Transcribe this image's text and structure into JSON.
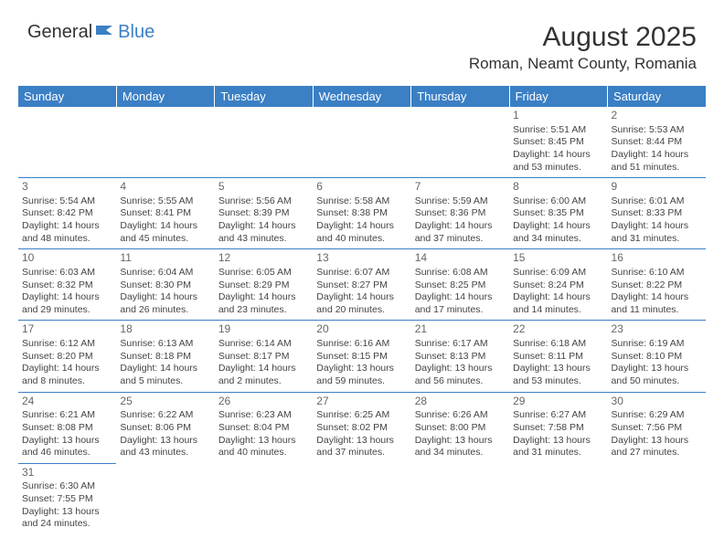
{
  "logo": {
    "text1": "General",
    "text2": "Blue"
  },
  "title": "August 2025",
  "location": "Roman, Neamt County, Romania",
  "colors": {
    "header_bg": "#3b7fc4",
    "header_text": "#ffffff",
    "border": "#3b7fc4",
    "text": "#444444",
    "daynum": "#666666"
  },
  "dayHeaders": [
    "Sunday",
    "Monday",
    "Tuesday",
    "Wednesday",
    "Thursday",
    "Friday",
    "Saturday"
  ],
  "weeks": [
    [
      null,
      null,
      null,
      null,
      null,
      {
        "n": "1",
        "sr": "Sunrise: 5:51 AM",
        "ss": "Sunset: 8:45 PM",
        "dl": "Daylight: 14 hours and 53 minutes."
      },
      {
        "n": "2",
        "sr": "Sunrise: 5:53 AM",
        "ss": "Sunset: 8:44 PM",
        "dl": "Daylight: 14 hours and 51 minutes."
      }
    ],
    [
      {
        "n": "3",
        "sr": "Sunrise: 5:54 AM",
        "ss": "Sunset: 8:42 PM",
        "dl": "Daylight: 14 hours and 48 minutes."
      },
      {
        "n": "4",
        "sr": "Sunrise: 5:55 AM",
        "ss": "Sunset: 8:41 PM",
        "dl": "Daylight: 14 hours and 45 minutes."
      },
      {
        "n": "5",
        "sr": "Sunrise: 5:56 AM",
        "ss": "Sunset: 8:39 PM",
        "dl": "Daylight: 14 hours and 43 minutes."
      },
      {
        "n": "6",
        "sr": "Sunrise: 5:58 AM",
        "ss": "Sunset: 8:38 PM",
        "dl": "Daylight: 14 hours and 40 minutes."
      },
      {
        "n": "7",
        "sr": "Sunrise: 5:59 AM",
        "ss": "Sunset: 8:36 PM",
        "dl": "Daylight: 14 hours and 37 minutes."
      },
      {
        "n": "8",
        "sr": "Sunrise: 6:00 AM",
        "ss": "Sunset: 8:35 PM",
        "dl": "Daylight: 14 hours and 34 minutes."
      },
      {
        "n": "9",
        "sr": "Sunrise: 6:01 AM",
        "ss": "Sunset: 8:33 PM",
        "dl": "Daylight: 14 hours and 31 minutes."
      }
    ],
    [
      {
        "n": "10",
        "sr": "Sunrise: 6:03 AM",
        "ss": "Sunset: 8:32 PM",
        "dl": "Daylight: 14 hours and 29 minutes."
      },
      {
        "n": "11",
        "sr": "Sunrise: 6:04 AM",
        "ss": "Sunset: 8:30 PM",
        "dl": "Daylight: 14 hours and 26 minutes."
      },
      {
        "n": "12",
        "sr": "Sunrise: 6:05 AM",
        "ss": "Sunset: 8:29 PM",
        "dl": "Daylight: 14 hours and 23 minutes."
      },
      {
        "n": "13",
        "sr": "Sunrise: 6:07 AM",
        "ss": "Sunset: 8:27 PM",
        "dl": "Daylight: 14 hours and 20 minutes."
      },
      {
        "n": "14",
        "sr": "Sunrise: 6:08 AM",
        "ss": "Sunset: 8:25 PM",
        "dl": "Daylight: 14 hours and 17 minutes."
      },
      {
        "n": "15",
        "sr": "Sunrise: 6:09 AM",
        "ss": "Sunset: 8:24 PM",
        "dl": "Daylight: 14 hours and 14 minutes."
      },
      {
        "n": "16",
        "sr": "Sunrise: 6:10 AM",
        "ss": "Sunset: 8:22 PM",
        "dl": "Daylight: 14 hours and 11 minutes."
      }
    ],
    [
      {
        "n": "17",
        "sr": "Sunrise: 6:12 AM",
        "ss": "Sunset: 8:20 PM",
        "dl": "Daylight: 14 hours and 8 minutes."
      },
      {
        "n": "18",
        "sr": "Sunrise: 6:13 AM",
        "ss": "Sunset: 8:18 PM",
        "dl": "Daylight: 14 hours and 5 minutes."
      },
      {
        "n": "19",
        "sr": "Sunrise: 6:14 AM",
        "ss": "Sunset: 8:17 PM",
        "dl": "Daylight: 14 hours and 2 minutes."
      },
      {
        "n": "20",
        "sr": "Sunrise: 6:16 AM",
        "ss": "Sunset: 8:15 PM",
        "dl": "Daylight: 13 hours and 59 minutes."
      },
      {
        "n": "21",
        "sr": "Sunrise: 6:17 AM",
        "ss": "Sunset: 8:13 PM",
        "dl": "Daylight: 13 hours and 56 minutes."
      },
      {
        "n": "22",
        "sr": "Sunrise: 6:18 AM",
        "ss": "Sunset: 8:11 PM",
        "dl": "Daylight: 13 hours and 53 minutes."
      },
      {
        "n": "23",
        "sr": "Sunrise: 6:19 AM",
        "ss": "Sunset: 8:10 PM",
        "dl": "Daylight: 13 hours and 50 minutes."
      }
    ],
    [
      {
        "n": "24",
        "sr": "Sunrise: 6:21 AM",
        "ss": "Sunset: 8:08 PM",
        "dl": "Daylight: 13 hours and 46 minutes."
      },
      {
        "n": "25",
        "sr": "Sunrise: 6:22 AM",
        "ss": "Sunset: 8:06 PM",
        "dl": "Daylight: 13 hours and 43 minutes."
      },
      {
        "n": "26",
        "sr": "Sunrise: 6:23 AM",
        "ss": "Sunset: 8:04 PM",
        "dl": "Daylight: 13 hours and 40 minutes."
      },
      {
        "n": "27",
        "sr": "Sunrise: 6:25 AM",
        "ss": "Sunset: 8:02 PM",
        "dl": "Daylight: 13 hours and 37 minutes."
      },
      {
        "n": "28",
        "sr": "Sunrise: 6:26 AM",
        "ss": "Sunset: 8:00 PM",
        "dl": "Daylight: 13 hours and 34 minutes."
      },
      {
        "n": "29",
        "sr": "Sunrise: 6:27 AM",
        "ss": "Sunset: 7:58 PM",
        "dl": "Daylight: 13 hours and 31 minutes."
      },
      {
        "n": "30",
        "sr": "Sunrise: 6:29 AM",
        "ss": "Sunset: 7:56 PM",
        "dl": "Daylight: 13 hours and 27 minutes."
      }
    ],
    [
      {
        "n": "31",
        "sr": "Sunrise: 6:30 AM",
        "ss": "Sunset: 7:55 PM",
        "dl": "Daylight: 13 hours and 24 minutes."
      },
      null,
      null,
      null,
      null,
      null,
      null
    ]
  ]
}
